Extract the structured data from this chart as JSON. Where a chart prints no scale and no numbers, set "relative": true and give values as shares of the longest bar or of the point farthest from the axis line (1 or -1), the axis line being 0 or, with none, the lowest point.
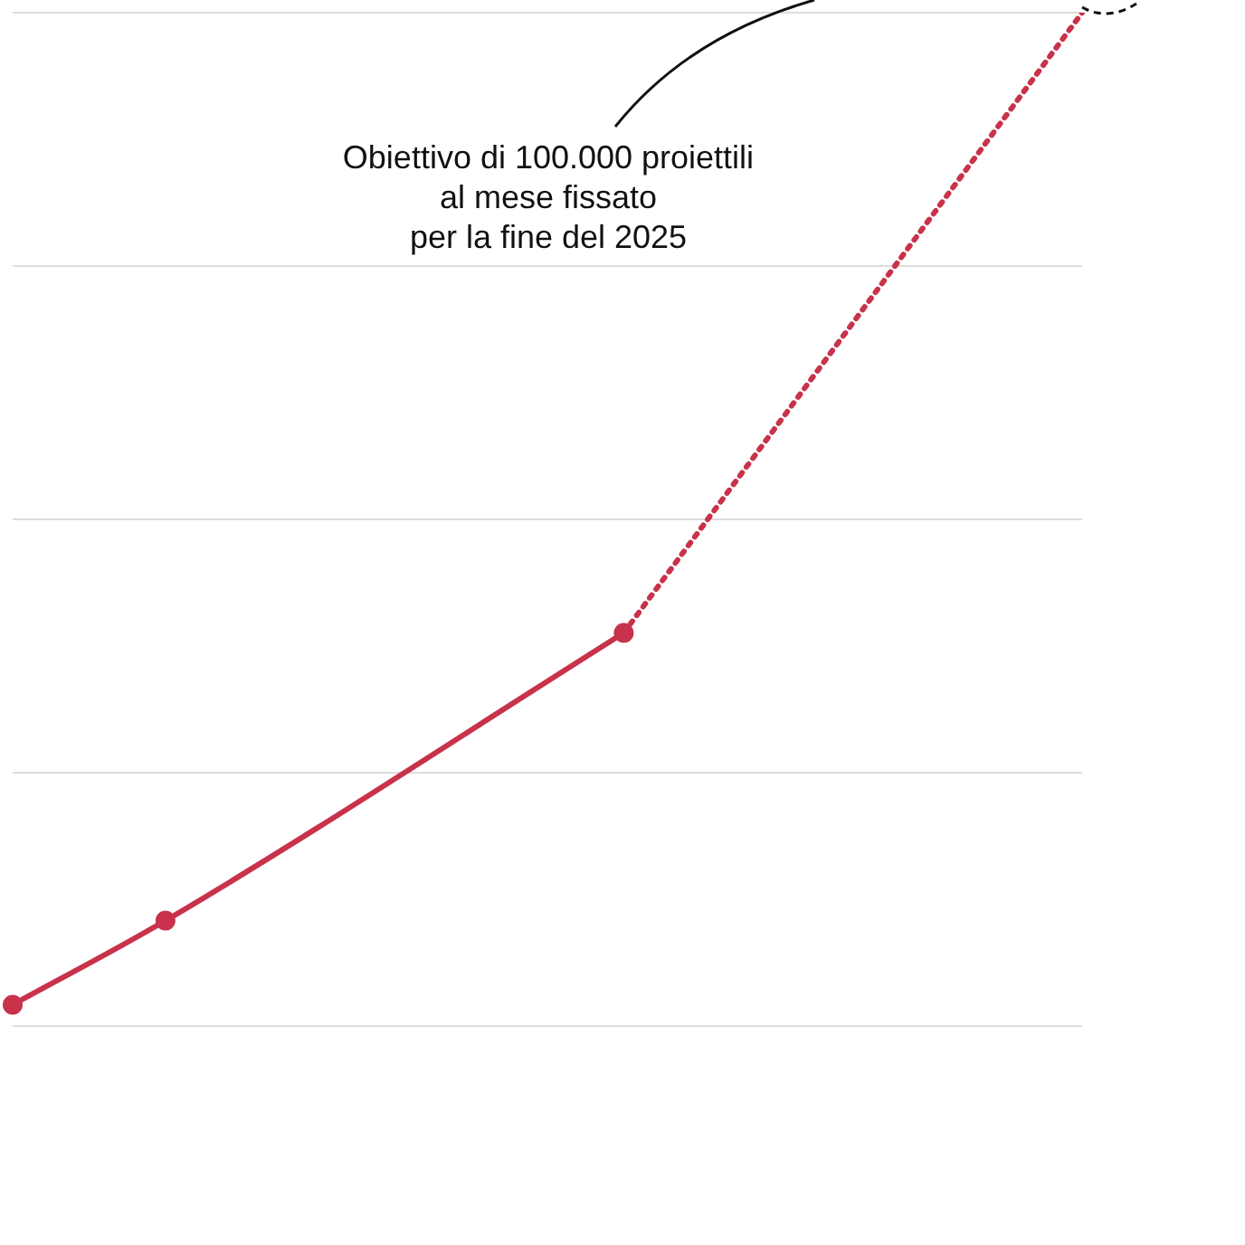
{
  "chart_data": {
    "type": "line",
    "relative": true,
    "grid": "y",
    "legend": false,
    "categories": [
      null,
      null,
      null,
      null,
      null,
      null,
      null,
      null
    ],
    "series": [
      {
        "color": "#c8324a",
        "values": [
          0.021,
          0.104,
          null,
          null,
          0.388,
          null,
          null,
          null
        ],
        "line_style": "solid",
        "marker": "circle"
      },
      {
        "color": "#c8324a",
        "values": [
          null,
          null,
          null,
          null,
          0.388,
          null,
          null,
          1.0
        ],
        "line_style": "dotted",
        "marker": "none"
      }
    ],
    "annotations": [
      "Obiettivo di 100.000 proiettili\nal mese fissato\nper la fine del 2025"
    ]
  }
}
